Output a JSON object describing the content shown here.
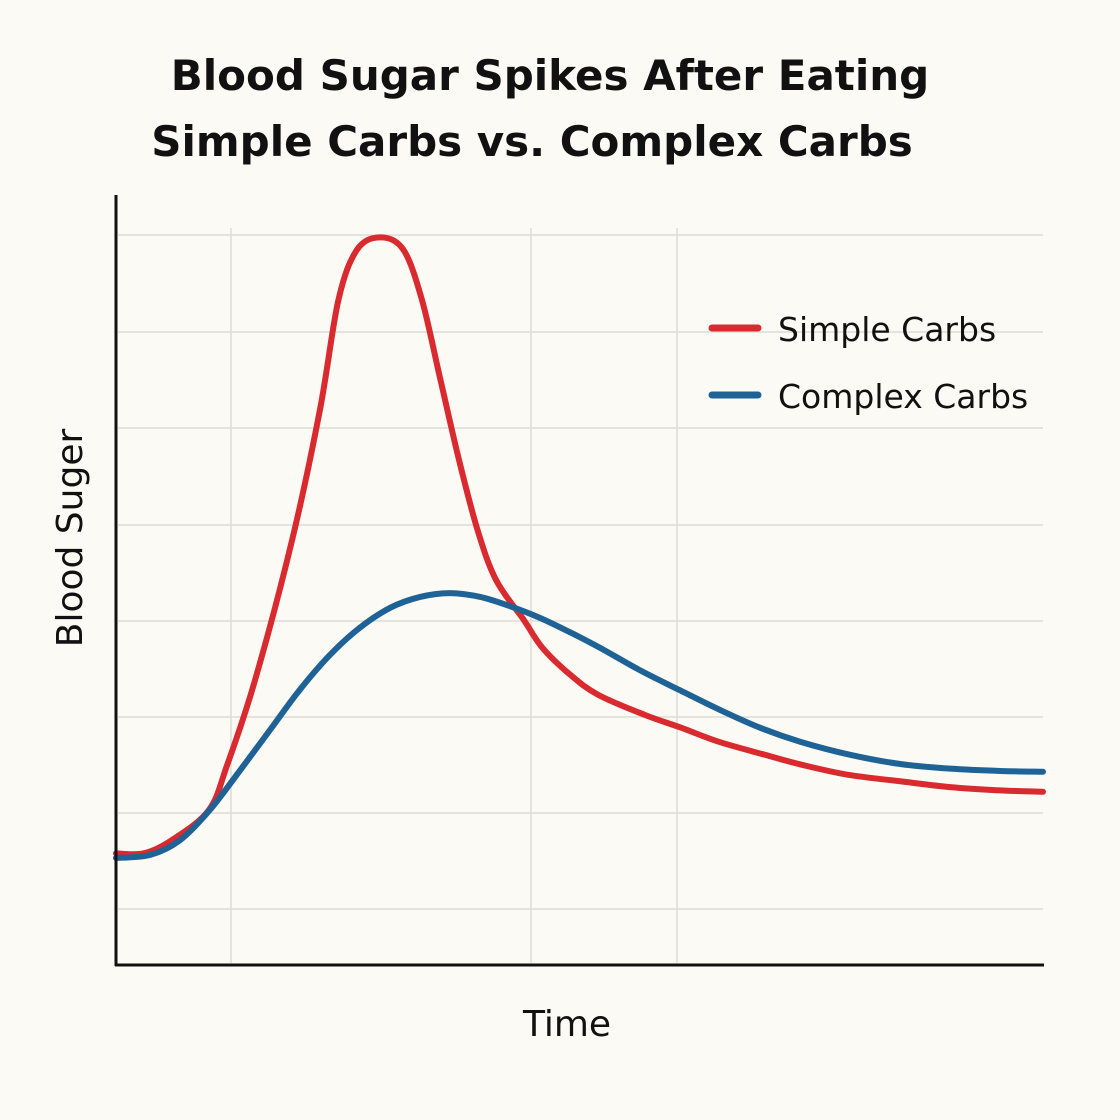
{
  "chart_data": {
    "type": "line",
    "title": "Blood Sugar Spikes After Eating",
    "subtitle": "Simple Carbs vs. Complex Carbs",
    "xlabel": "Time",
    "ylabel": "Blood Suger",
    "xlim": [
      0,
      100
    ],
    "ylim": [
      0,
      100
    ],
    "grid": true,
    "tick_labels": false,
    "legend_placement": "top-right",
    "series": [
      {
        "name": "Simple Carbs",
        "color": "#d92b2f",
        "x": [
          0,
          3,
          6,
          10,
          12,
          15,
          19,
          22,
          24,
          26,
          28.5,
          31,
          33,
          35,
          37,
          39,
          41,
          44,
          46,
          49,
          52,
          57,
          61,
          65,
          70,
          74,
          79,
          85,
          90,
          95,
          100
        ],
        "y": [
          14.5,
          14.5,
          16.2,
          20.1,
          26.0,
          37.0,
          55.2,
          72.1,
          86.4,
          92.9,
          94.5,
          92.9,
          86.4,
          76.0,
          65.6,
          56.5,
          50.0,
          44.8,
          41.2,
          37.7,
          35.1,
          32.5,
          30.8,
          29.0,
          27.3,
          26.0,
          24.7,
          23.8,
          23.1,
          22.7,
          22.5
        ]
      },
      {
        "name": "Complex Carbs",
        "color": "#1f6396",
        "x": [
          0,
          3.7,
          6.9,
          10.1,
          13.4,
          16.6,
          19.8,
          23.1,
          26.3,
          29.6,
          32.8,
          36.0,
          39.3,
          42.5,
          45.7,
          49.0,
          52.2,
          56.5,
          60.8,
          65.2,
          69.5,
          73.8,
          79.2,
          84.6,
          90.0,
          95.4,
          100
        ],
        "y": [
          13.9,
          14.3,
          16.2,
          20.1,
          25.3,
          30.5,
          35.7,
          40.3,
          43.8,
          46.4,
          47.8,
          48.3,
          47.8,
          46.6,
          45.1,
          43.2,
          41.2,
          38.3,
          35.7,
          33.1,
          30.8,
          29.0,
          27.3,
          26.1,
          25.5,
          25.2,
          25.1
        ]
      }
    ]
  }
}
